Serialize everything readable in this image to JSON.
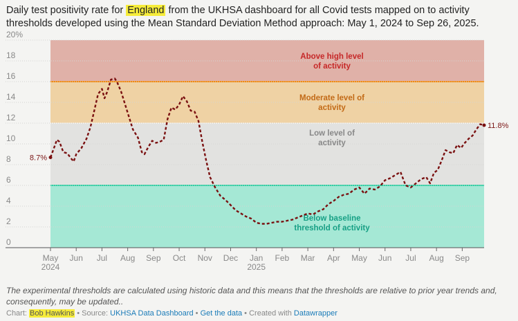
{
  "title": {
    "pre": "Daily test positivity rate for ",
    "highlight": "England",
    "post": " from the UKHSA dashboard for all Covid tests mapped on to activity thresholds developed using the Mean Standard Deviation Method approach: May 1, 2024 to Sep 26, 2025."
  },
  "notes": "The experimental thresholds are calculated using historic data and this means that the thresholds are relative to prior year trends and, consequently, may be updated..",
  "credits": {
    "chart_label": "Chart: ",
    "author": "Bob Hawkins",
    "source_label": " • Source: ",
    "source_link": "UKHSA Data Dashboard",
    "sep1": " • ",
    "get_data": "Get the data",
    "sep2": " • Created with ",
    "tool": "Datawrapper"
  },
  "colors": {
    "high_zone": "#e0b1a8",
    "moderate_zone": "#efd2a4",
    "low_zone": "#e2e2e0",
    "baseline_zone": "#a5e8d5",
    "high_line": "#f28a12",
    "low_line": "#2fd1a5",
    "series_line": "#7a1010",
    "high_text": "#c62828",
    "moderate_text": "#c26a17",
    "low_text": "#888888",
    "baseline_text": "#16a085"
  },
  "chart_data": {
    "type": "line",
    "title": "Daily test positivity rate for England",
    "ylim": [
      0,
      20
    ],
    "yticks": [
      "0",
      "2",
      "4",
      "6",
      "8",
      "10",
      "12",
      "14",
      "16",
      "18",
      "20%"
    ],
    "ytick_values": [
      0,
      2,
      4,
      6,
      8,
      10,
      12,
      14,
      16,
      18,
      20
    ],
    "xrange_months": [
      0,
      16.85
    ],
    "xticks": [
      {
        "label": "May",
        "sub": "2024",
        "m": 0
      },
      {
        "label": "Jun",
        "sub": "",
        "m": 1
      },
      {
        "label": "Jul",
        "sub": "",
        "m": 2
      },
      {
        "label": "Aug",
        "sub": "",
        "m": 3
      },
      {
        "label": "Sep",
        "sub": "",
        "m": 4
      },
      {
        "label": "Oct",
        "sub": "",
        "m": 5
      },
      {
        "label": "Nov",
        "sub": "",
        "m": 6
      },
      {
        "label": "Dec",
        "sub": "",
        "m": 7
      },
      {
        "label": "Jan",
        "sub": "2025",
        "m": 8
      },
      {
        "label": "Feb",
        "sub": "",
        "m": 9
      },
      {
        "label": "Mar",
        "sub": "",
        "m": 10
      },
      {
        "label": "Apr",
        "sub": "",
        "m": 11
      },
      {
        "label": "May",
        "sub": "",
        "m": 12
      },
      {
        "label": "Jun",
        "sub": "",
        "m": 13
      },
      {
        "label": "Jul",
        "sub": "",
        "m": 14
      },
      {
        "label": "Aug",
        "sub": "",
        "m": 15
      },
      {
        "label": "Sep",
        "sub": "",
        "m": 16
      }
    ],
    "zones": [
      {
        "name": "Above high level of activity",
        "label_lines": [
          "Above high level",
          "of activity"
        ],
        "from": 16,
        "to": 20,
        "label_y": 18.2
      },
      {
        "name": "Moderate level of activity",
        "label_lines": [
          "Moderate level of",
          "activity"
        ],
        "from": 12,
        "to": 16,
        "label_y": 14.2
      },
      {
        "name": "Low level of activity",
        "label_lines": [
          "Low level of",
          "activity"
        ],
        "from": 6,
        "to": 12,
        "label_y": 10.8
      },
      {
        "name": "Below baseline threshold of activity",
        "label_lines": [
          "Below baseline",
          "threshold of activity"
        ],
        "from": 0,
        "to": 6,
        "label_y": 2.6
      }
    ],
    "thresholds": [
      {
        "name": "high",
        "value": 16
      },
      {
        "name": "baseline",
        "value": 6
      }
    ],
    "start_label": "8.7%",
    "end_label": "11.8%",
    "series": [
      {
        "name": "Positivity rate (%)",
        "points": [
          [
            0.0,
            8.7
          ],
          [
            0.12,
            9.5
          ],
          [
            0.25,
            10.4
          ],
          [
            0.35,
            10.2
          ],
          [
            0.5,
            9.2
          ],
          [
            0.65,
            9.1
          ],
          [
            0.8,
            8.6
          ],
          [
            0.9,
            8.3
          ],
          [
            1.0,
            9.0
          ],
          [
            1.2,
            9.6
          ],
          [
            1.4,
            10.5
          ],
          [
            1.55,
            11.6
          ],
          [
            1.7,
            13.2
          ],
          [
            1.85,
            14.8
          ],
          [
            2.0,
            15.3
          ],
          [
            2.1,
            14.4
          ],
          [
            2.2,
            15.0
          ],
          [
            2.35,
            16.2
          ],
          [
            2.5,
            16.3
          ],
          [
            2.6,
            15.9
          ],
          [
            2.75,
            15.0
          ],
          [
            2.9,
            13.8
          ],
          [
            3.05,
            12.6
          ],
          [
            3.2,
            11.4
          ],
          [
            3.4,
            10.6
          ],
          [
            3.55,
            9.2
          ],
          [
            3.65,
            9.0
          ],
          [
            3.8,
            9.7
          ],
          [
            3.95,
            10.3
          ],
          [
            4.1,
            10.1
          ],
          [
            4.25,
            10.2
          ],
          [
            4.4,
            10.4
          ],
          [
            4.55,
            12.4
          ],
          [
            4.7,
            13.5
          ],
          [
            4.85,
            13.3
          ],
          [
            5.0,
            13.8
          ],
          [
            5.15,
            14.6
          ],
          [
            5.3,
            14.1
          ],
          [
            5.45,
            13.2
          ],
          [
            5.6,
            13.1
          ],
          [
            5.75,
            12.2
          ],
          [
            5.9,
            10.2
          ],
          [
            6.05,
            8.4
          ],
          [
            6.2,
            6.8
          ],
          [
            6.4,
            5.8
          ],
          [
            6.6,
            5.0
          ],
          [
            6.8,
            4.6
          ],
          [
            7.0,
            4.1
          ],
          [
            7.2,
            3.6
          ],
          [
            7.4,
            3.3
          ],
          [
            7.6,
            3.0
          ],
          [
            7.8,
            2.8
          ],
          [
            8.0,
            2.4
          ],
          [
            8.2,
            2.3
          ],
          [
            8.4,
            2.3
          ],
          [
            8.6,
            2.4
          ],
          [
            8.8,
            2.5
          ],
          [
            9.0,
            2.5
          ],
          [
            9.2,
            2.6
          ],
          [
            9.4,
            2.7
          ],
          [
            9.6,
            2.9
          ],
          [
            9.8,
            3.1
          ],
          [
            10.0,
            3.3
          ],
          [
            10.2,
            3.2
          ],
          [
            10.4,
            3.5
          ],
          [
            10.6,
            3.7
          ],
          [
            10.8,
            4.2
          ],
          [
            11.0,
            4.5
          ],
          [
            11.2,
            4.9
          ],
          [
            11.4,
            5.1
          ],
          [
            11.6,
            5.2
          ],
          [
            11.8,
            5.6
          ],
          [
            12.0,
            5.8
          ],
          [
            12.2,
            5.2
          ],
          [
            12.4,
            5.7
          ],
          [
            12.6,
            5.6
          ],
          [
            12.8,
            5.9
          ],
          [
            13.0,
            6.5
          ],
          [
            13.2,
            6.7
          ],
          [
            13.4,
            7.0
          ],
          [
            13.6,
            7.3
          ],
          [
            13.8,
            6.0
          ],
          [
            14.0,
            5.8
          ],
          [
            14.2,
            6.2
          ],
          [
            14.4,
            6.6
          ],
          [
            14.6,
            6.8
          ],
          [
            14.75,
            6.2
          ],
          [
            14.9,
            7.2
          ],
          [
            15.05,
            7.5
          ],
          [
            15.2,
            8.4
          ],
          [
            15.35,
            9.4
          ],
          [
            15.5,
            9.2
          ],
          [
            15.65,
            9.1
          ],
          [
            15.8,
            9.9
          ],
          [
            15.95,
            9.6
          ],
          [
            16.1,
            10.1
          ],
          [
            16.25,
            10.5
          ],
          [
            16.4,
            10.8
          ],
          [
            16.55,
            11.4
          ],
          [
            16.7,
            11.9
          ],
          [
            16.85,
            11.8
          ]
        ]
      }
    ]
  }
}
